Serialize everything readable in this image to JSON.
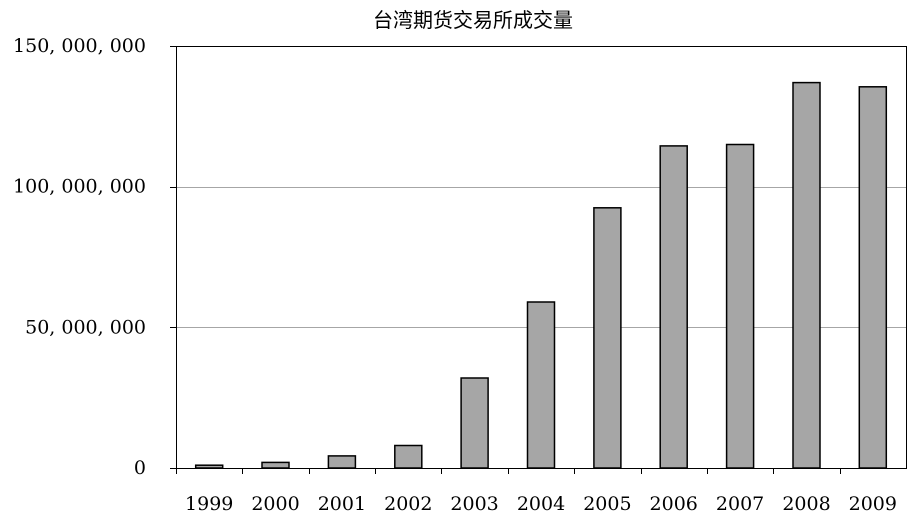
{
  "chart_data": {
    "type": "bar",
    "title": "台湾期货交易所成交量",
    "xlabel": "",
    "ylabel": "",
    "categories": [
      "1999",
      "2000",
      "2001",
      "2002",
      "2003",
      "2004",
      "2005",
      "2006",
      "2007",
      "2008",
      "2009"
    ],
    "values": [
      1000000,
      2000000,
      4300000,
      8000000,
      32000000,
      59000000,
      92500000,
      114500000,
      115000000,
      137000000,
      135500000
    ],
    "ylim": [
      0,
      150000000
    ],
    "yticks": [
      {
        "value": 0,
        "label": "0"
      },
      {
        "value": 50000000,
        "label": "50, 000, 000"
      },
      {
        "value": 100000000,
        "label": "100, 000, 000"
      },
      {
        "value": 150000000,
        "label": "150, 000, 000"
      }
    ],
    "grid": true,
    "bar_color": "#a6a6a6",
    "bar_outline_color": "#000000"
  }
}
